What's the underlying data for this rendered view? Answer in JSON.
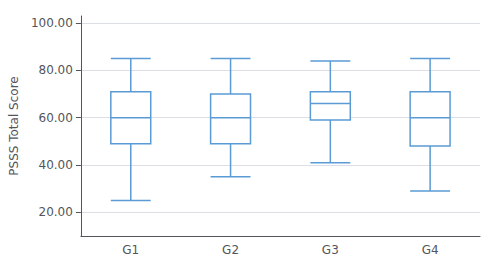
{
  "chart_data": {
    "type": "boxplot",
    "categories": [
      "G1",
      "G2",
      "G3",
      "G4"
    ],
    "values": [
      [
        25,
        49,
        60,
        71,
        85
      ],
      [
        35,
        49,
        60,
        70,
        85
      ],
      [
        41,
        59,
        66,
        71,
        84
      ],
      [
        29,
        48,
        60,
        71,
        85
      ]
    ],
    "ylabel": "PSSS Total Score",
    "ylim": [
      10,
      103
    ],
    "yticks": [
      {
        "value": 20.0,
        "label": "20.00"
      },
      {
        "value": 40.0,
        "label": "40.00"
      },
      {
        "value": 60.0,
        "label": "60.00"
      },
      {
        "value": 80.0,
        "label": "80.00"
      },
      {
        "value": 100.0,
        "label": "100.00"
      }
    ],
    "color": "#5B9BD5",
    "grid": true
  }
}
